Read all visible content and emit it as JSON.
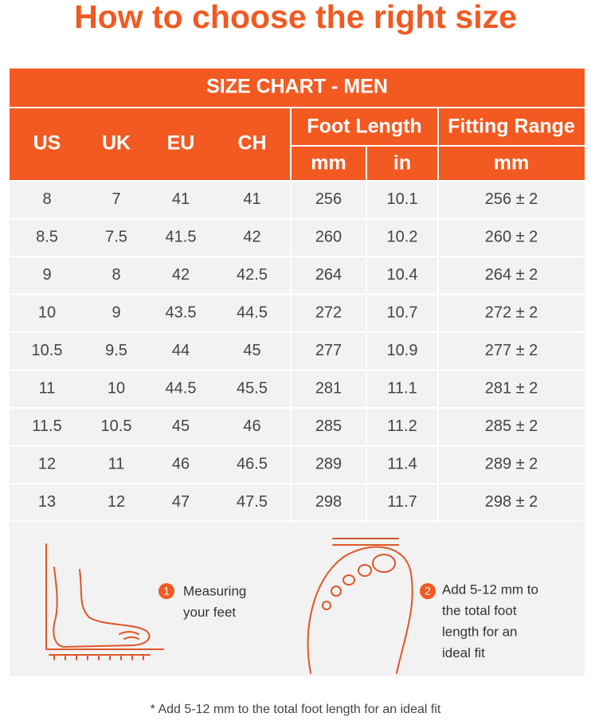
{
  "title": "How to choose the right size",
  "table": {
    "caption": "SIZE CHART - MEN",
    "columns": [
      "US",
      "UK",
      "EU",
      "CH"
    ],
    "foot_length": {
      "label": "Foot Length",
      "units": [
        "mm",
        "in"
      ]
    },
    "fitting_range": {
      "label": "Fitting Range",
      "unit": "mm"
    },
    "rows": [
      [
        "8",
        "7",
        "41",
        "41",
        "256",
        "10.1",
        "256 ± 2"
      ],
      [
        "8.5",
        "7.5",
        "41.5",
        "42",
        "260",
        "10.2",
        "260 ± 2"
      ],
      [
        "9",
        "8",
        "42",
        "42.5",
        "264",
        "10.4",
        "264 ± 2"
      ],
      [
        "10",
        "9",
        "43.5",
        "44.5",
        "272",
        "10.7",
        "272 ± 2"
      ],
      [
        "10.5",
        "9.5",
        "44",
        "45",
        "277",
        "10.9",
        "277 ± 2"
      ],
      [
        "11",
        "10",
        "44.5",
        "45.5",
        "281",
        "11.1",
        "281 ± 2"
      ],
      [
        "11.5",
        "10.5",
        "45",
        "46",
        "285",
        "11.2",
        "285 ± 2"
      ],
      [
        "12",
        "11",
        "46",
        "46.5",
        "289",
        "11.4",
        "289 ± 2"
      ],
      [
        "13",
        "12",
        "47",
        "47.5",
        "298",
        "11.7",
        "298 ± 2"
      ]
    ]
  },
  "steps": [
    {
      "number": "1",
      "lines": [
        "Measuring",
        "your feet"
      ]
    },
    {
      "number": "2",
      "lines": [
        "Add 5-12 mm to",
        "the total foot",
        "length for an",
        "ideal fit"
      ]
    }
  ],
  "footnote": "* Add 5-12 mm to the total foot length for an ideal fit"
}
